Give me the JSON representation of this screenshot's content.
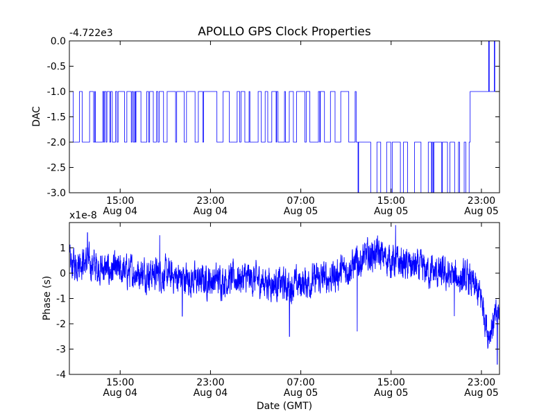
{
  "title": "APOLLO GPS Clock Properties",
  "chart_data": [
    {
      "type": "line",
      "ylabel": "DAC",
      "offset_label": "-4.722e3",
      "ylim": [
        -3.0,
        0.0
      ],
      "yticks": [
        0.0,
        -0.5,
        -1.0,
        -1.5,
        -2.0,
        -2.5,
        -3.0
      ],
      "ytick_labels": [
        "0.0",
        "-0.5",
        "-1.0",
        "-1.5",
        "-2.0",
        "-2.5",
        "-3.0"
      ],
      "xlim_hours": [
        10.5,
        48.6
      ],
      "xticks_hours": [
        15,
        23,
        31,
        39,
        47
      ],
      "xtick_labels": [
        [
          "15:00",
          "Aug 04"
        ],
        [
          "23:00",
          "Aug 04"
        ],
        [
          "07:00",
          "Aug 05"
        ],
        [
          "15:00",
          "Aug 05"
        ],
        [
          "23:00",
          "Aug 05"
        ]
      ],
      "line_color": "#0000ff",
      "segments": [
        {
          "from": 10.5,
          "to": 21.0,
          "base": -1,
          "alt": -2,
          "density": 0.55
        },
        {
          "from": 21.0,
          "to": 27.5,
          "base": -1,
          "alt": -2,
          "density": 0.35
        },
        {
          "from": 27.5,
          "to": 32.0,
          "base": -2,
          "alt": -1,
          "density": 0.3
        },
        {
          "from": 32.0,
          "to": 35.9,
          "base": -2,
          "alt": -1,
          "density": 0.25
        },
        {
          "from": 35.9,
          "to": 46.0,
          "base": -2,
          "alt": -3,
          "density": 0.45
        },
        {
          "from": 46.0,
          "to": 48.6,
          "base": -1,
          "alt": 0,
          "density": 0.2
        }
      ]
    },
    {
      "type": "line",
      "ylabel": "Phase (s)",
      "offset_label": "x1e-8",
      "xlabel": "Date (GMT)",
      "ylim": [
        -4,
        2
      ],
      "yticks": [
        1,
        0,
        -1,
        -2,
        -3,
        -4
      ],
      "ytick_labels": [
        "1",
        "0",
        "-1",
        "-2",
        "-3",
        "-4"
      ],
      "xlim_hours": [
        10.5,
        48.6
      ],
      "xticks_hours": [
        15,
        23,
        31,
        39,
        47
      ],
      "xtick_labels": [
        [
          "15:00",
          "Aug 04"
        ],
        [
          "23:00",
          "Aug 04"
        ],
        [
          "07:00",
          "Aug 05"
        ],
        [
          "15:00",
          "Aug 05"
        ],
        [
          "23:00",
          "Aug 05"
        ]
      ],
      "line_color": "#0000ff",
      "trend": [
        {
          "t": 10.5,
          "v": 0.3
        },
        {
          "t": 11.5,
          "v": 0.5
        },
        {
          "t": 14.0,
          "v": 0.1
        },
        {
          "t": 18.0,
          "v": 0.0
        },
        {
          "t": 22.0,
          "v": -0.3
        },
        {
          "t": 26.0,
          "v": -0.2
        },
        {
          "t": 30.0,
          "v": -0.5
        },
        {
          "t": 34.0,
          "v": -0.1
        },
        {
          "t": 37.5,
          "v": 0.8
        },
        {
          "t": 39.0,
          "v": 0.5
        },
        {
          "t": 43.0,
          "v": 0.0
        },
        {
          "t": 46.0,
          "v": -0.3
        },
        {
          "t": 47.0,
          "v": -1.0
        },
        {
          "t": 47.6,
          "v": -2.4
        },
        {
          "t": 48.6,
          "v": -1.5
        }
      ],
      "noise_amplitude": 0.45,
      "spikes": [
        {
          "t": 12.1,
          "v": 1.6
        },
        {
          "t": 18.5,
          "v": 1.5
        },
        {
          "t": 20.5,
          "v": -1.7
        },
        {
          "t": 30.0,
          "v": -2.5
        },
        {
          "t": 36.0,
          "v": -2.3
        },
        {
          "t": 39.4,
          "v": 1.9
        },
        {
          "t": 44.6,
          "v": -1.7
        },
        {
          "t": 48.4,
          "v": -3.6
        }
      ]
    }
  ]
}
